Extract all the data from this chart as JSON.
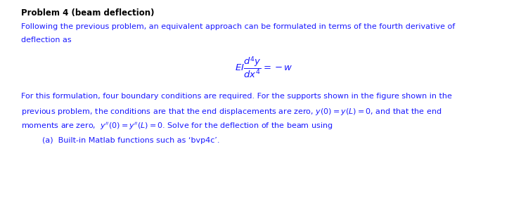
{
  "title": "Problem 4 (beam deflection)",
  "bg_color": "#ffffff",
  "text_color": "#1a1aff",
  "title_color": "#000000",
  "fig_width": 7.51,
  "fig_height": 3.06,
  "dpi": 100,
  "line1": "Following the previous problem, an equivalent approach can be formulated in terms of the fourth derivative of",
  "line2": "deflection as",
  "formula": "$EI\\dfrac{d^4y}{dx^4}=-w$",
  "line3": "For this formulation, four boundary conditions are required. For the supports shown in the figure shown in the",
  "line4": "previous problem, the conditions are that the end displacements are zero, $y(0)=y(L)=0$, and that the end",
  "line5": "moments are zero,  $y''(0)=y''(L)=0$. Solve for the deflection of the beam using",
  "line6": "(a)  Built-in Matlab functions such as ‘bvp4c’.",
  "font_size_title": 8.5,
  "font_size_body": 8.0,
  "font_size_formula": 9.5
}
